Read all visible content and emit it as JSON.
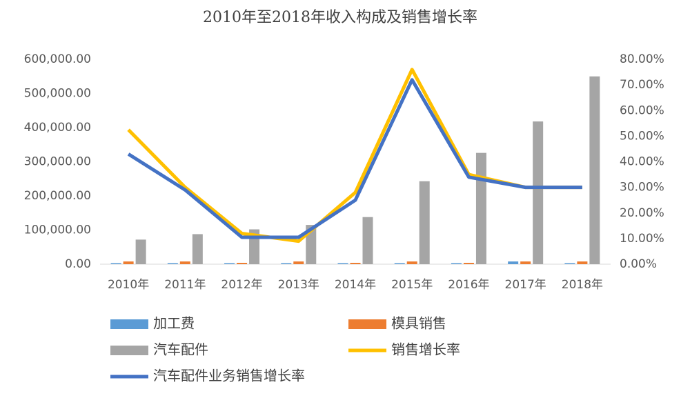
{
  "chart_data": {
    "type": "bar",
    "title": "2010年至2018年收入构成及销售增长率",
    "categories": [
      "2010年",
      "2011年",
      "2012年",
      "2013年",
      "2014年",
      "2015年",
      "2016年",
      "2017年",
      "2018年"
    ],
    "ylim": [
      0,
      600000
    ],
    "yticks": [
      {
        "value": 0,
        "label": "0.00"
      },
      {
        "value": 100000,
        "label": "100,000.00"
      },
      {
        "value": 200000,
        "label": "200,000.00"
      },
      {
        "value": 300000,
        "label": "300,000.00"
      },
      {
        "value": 400000,
        "label": "400,000.00"
      },
      {
        "value": 500000,
        "label": "500,000.00"
      },
      {
        "value": 600000,
        "label": "600,000.00"
      }
    ],
    "y2lim": [
      0,
      80
    ],
    "y2ticks": [
      {
        "value": 0,
        "label": "0.00%"
      },
      {
        "value": 10,
        "label": "10.00%"
      },
      {
        "value": 20,
        "label": "20.00%"
      },
      {
        "value": 30,
        "label": "30.00%"
      },
      {
        "value": 40,
        "label": "40.00%"
      },
      {
        "value": 50,
        "label": "50.00%"
      },
      {
        "value": 60,
        "label": "60.00%"
      },
      {
        "value": 70,
        "label": "70.00%"
      },
      {
        "value": 80,
        "label": "80.00%"
      }
    ],
    "series": [
      {
        "name": "加工费",
        "color": "#5b9bd5",
        "values": [
          3000,
          3000,
          3000,
          3000,
          3000,
          3000,
          3000,
          8000,
          3000
        ]
      },
      {
        "name": "模具销售",
        "color": "#ed7d31",
        "values": [
          8000,
          8000,
          4000,
          8000,
          4000,
          8000,
          4000,
          8000,
          8000
        ]
      },
      {
        "name": "汽车配件",
        "color": "#a5a5a5",
        "values": [
          72000,
          88000,
          102000,
          115000,
          138000,
          243000,
          326000,
          418000,
          550000
        ]
      },
      {
        "name": "销售增长率",
        "color": "#ffc000",
        "axis": "y2",
        "values": [
          52.5,
          30,
          12,
          9,
          28,
          76,
          35,
          30,
          30
        ]
      },
      {
        "name": "汽车配件业务销售增长率",
        "color": "#4472c4",
        "axis": "y2",
        "values": [
          43,
          29,
          10.5,
          10.5,
          25,
          72,
          34,
          30,
          30
        ]
      }
    ]
  }
}
